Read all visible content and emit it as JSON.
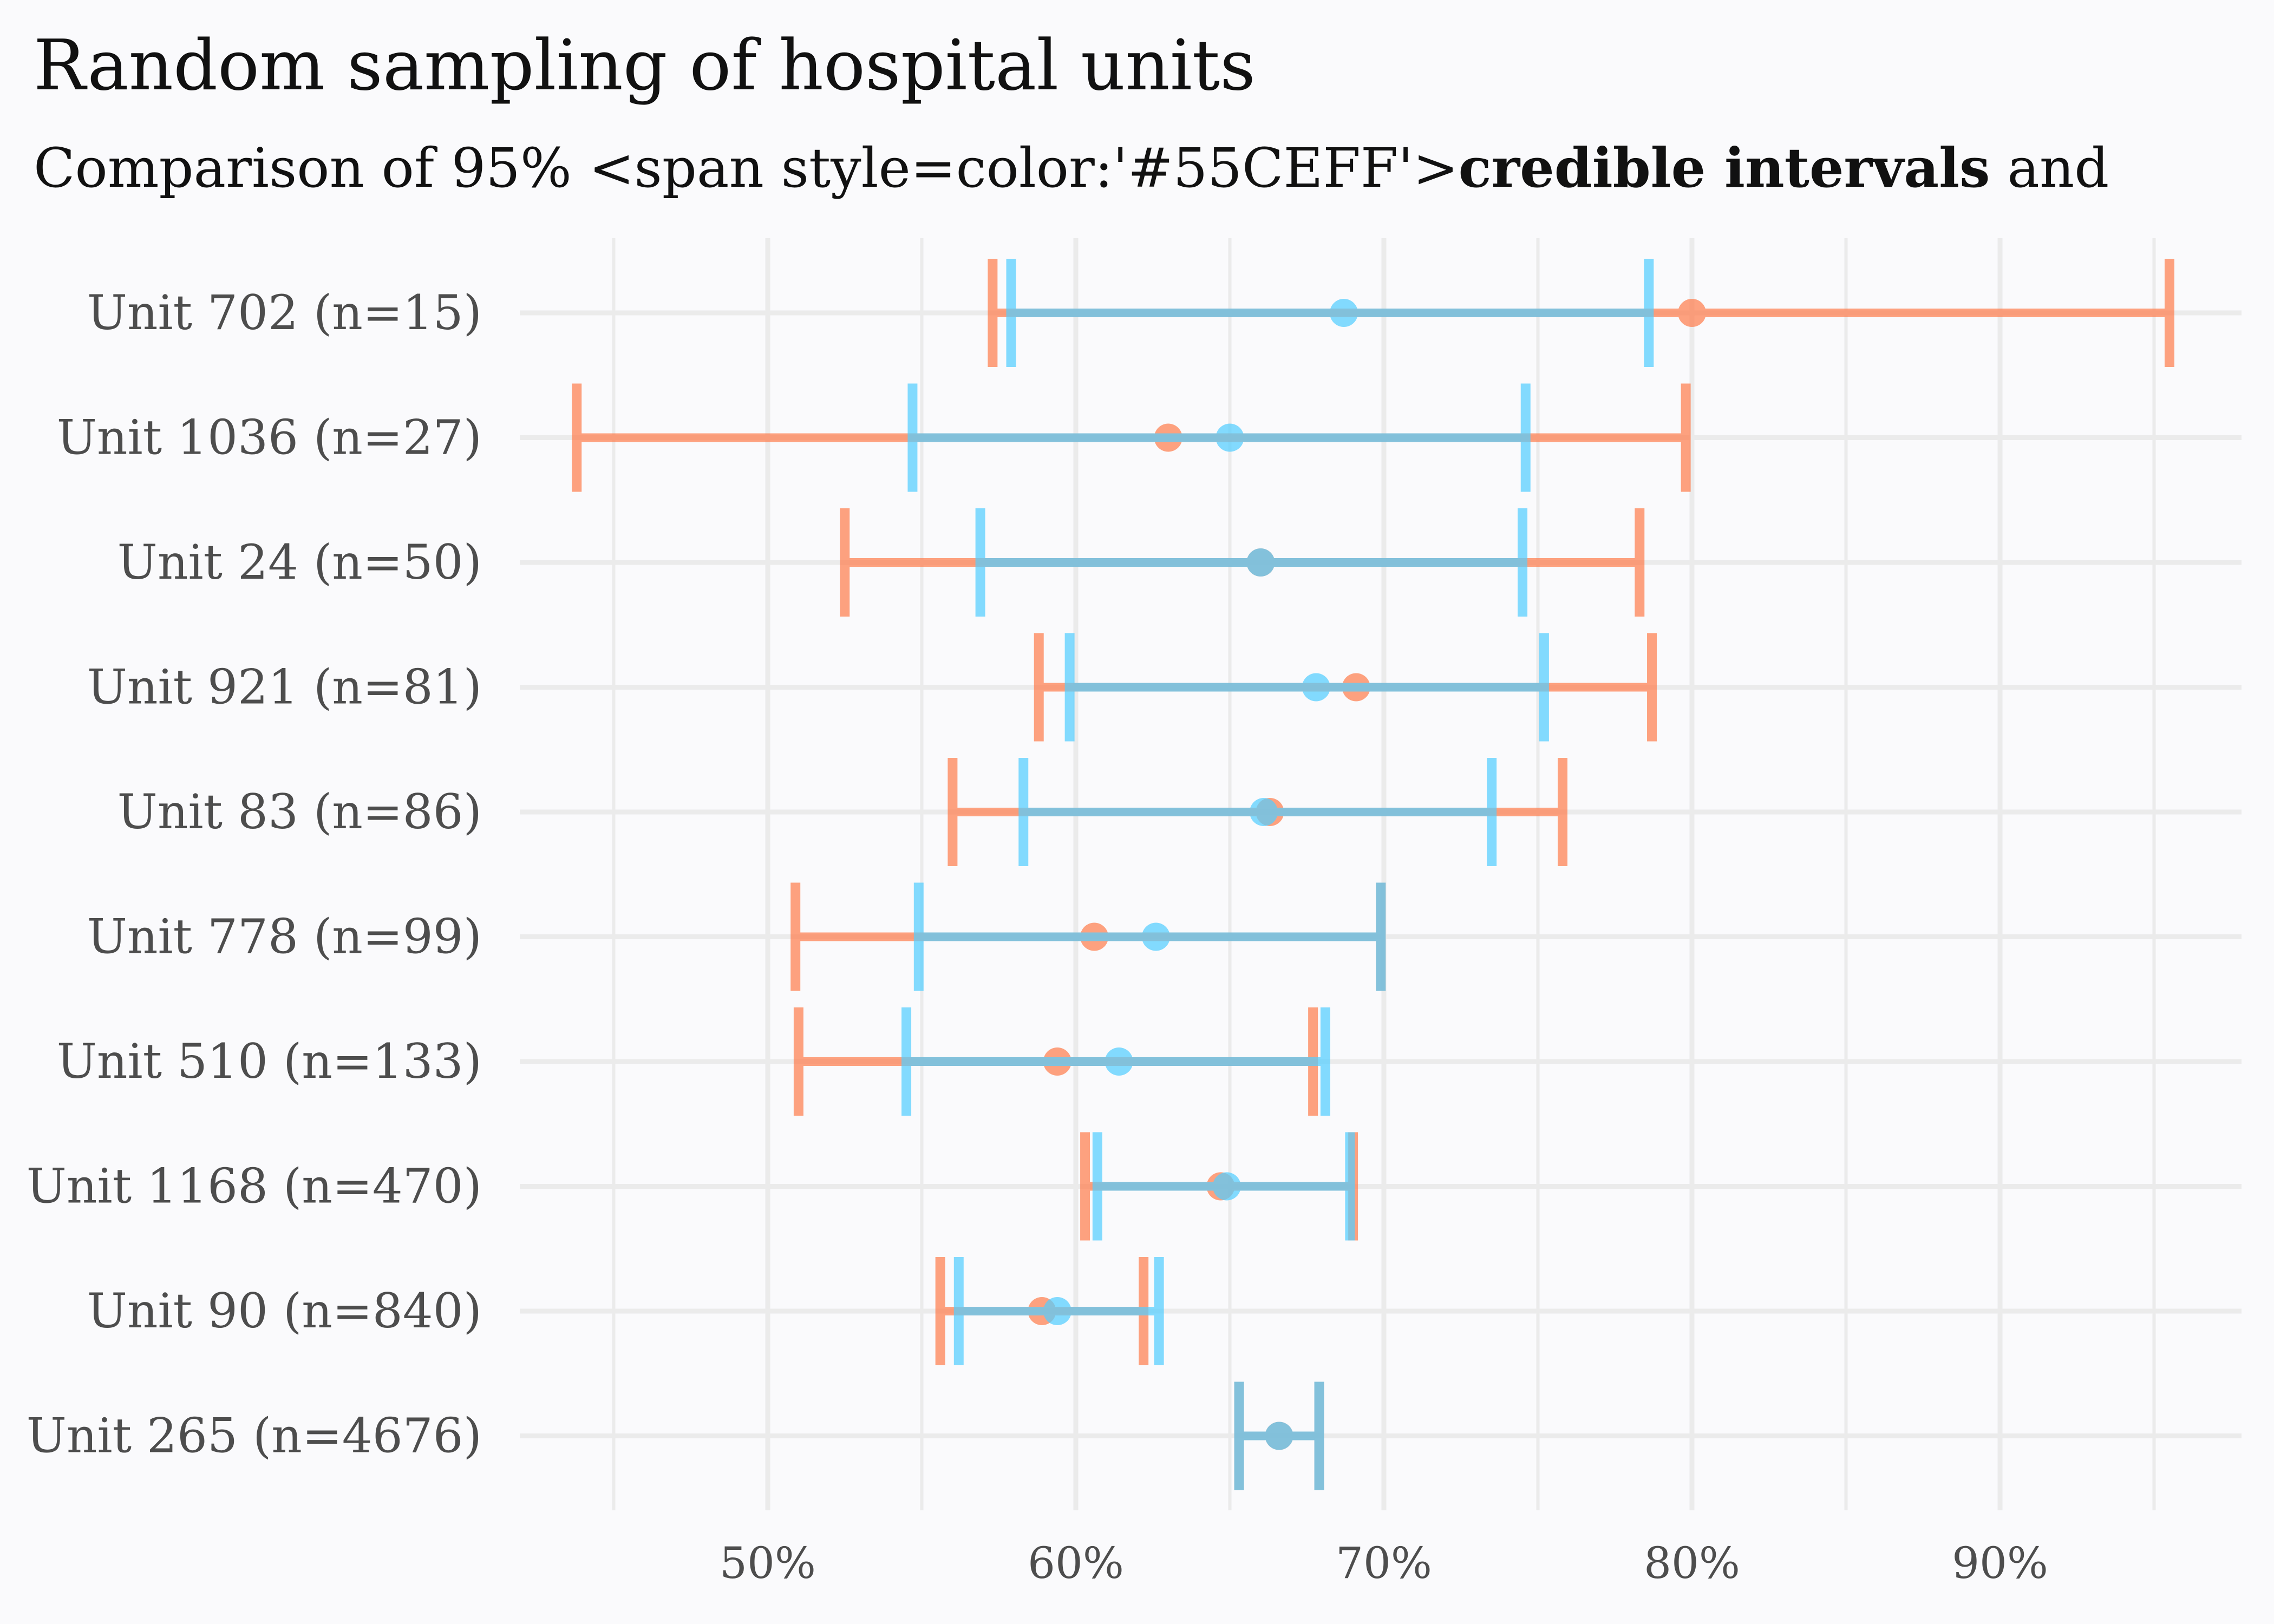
{
  "colors": {
    "background": "#FAFAFC",
    "grid": "#EBEBEB",
    "credible": "#55CEFF",
    "confidence": "#FF7F50"
  },
  "chart_data": {
    "type": "interval",
    "title": "Random sampling of hospital units",
    "subtitle_parts": [
      "Comparison of 95% <span style=color:'#55CEFF'>",
      "credible intervals",
      " and"
    ],
    "xlabel": "",
    "ylabel": "",
    "xlim": [
      0.42,
      0.975
    ],
    "x_ticks": [
      0.5,
      0.6,
      0.7,
      0.8,
      0.9
    ],
    "x_tick_labels": [
      "50%",
      "60%",
      "70%",
      "80%",
      "90%"
    ],
    "grid": true,
    "series": [
      {
        "key": "confidence",
        "units": [
          {
            "label": "Unit 702 (n=15)",
            "low": 0.573,
            "high": 0.955,
            "point": 0.8
          },
          {
            "label": "Unit 1036 (n=27)",
            "low": 0.438,
            "high": 0.798,
            "point": 0.63
          },
          {
            "label": "Unit 24 (n=50)",
            "low": 0.525,
            "high": 0.783,
            "point": 0.66
          },
          {
            "label": "Unit 921 (n=81)",
            "low": 0.588,
            "high": 0.787,
            "point": 0.691
          },
          {
            "label": "Unit 83 (n=86)",
            "low": 0.56,
            "high": 0.758,
            "point": 0.663
          },
          {
            "label": "Unit 778 (n=99)",
            "low": 0.509,
            "high": 0.699,
            "point": 0.606
          },
          {
            "label": "Unit 510 (n=133)",
            "low": 0.51,
            "high": 0.677,
            "point": 0.594
          },
          {
            "label": "Unit 1168 (n=470)",
            "low": 0.603,
            "high": 0.69,
            "point": 0.647
          },
          {
            "label": "Unit 90 (n=840)",
            "low": 0.556,
            "high": 0.622,
            "point": 0.589
          },
          {
            "label": "Unit 265 (n=4676)",
            "low": 0.653,
            "high": 0.679,
            "point": 0.666
          }
        ]
      },
      {
        "key": "credible",
        "units": [
          {
            "label": "Unit 702 (n=15)",
            "low": 0.579,
            "high": 0.786,
            "point": 0.687
          },
          {
            "label": "Unit 1036 (n=27)",
            "low": 0.547,
            "high": 0.746,
            "point": 0.65
          },
          {
            "label": "Unit 24 (n=50)",
            "low": 0.569,
            "high": 0.745,
            "point": 0.66
          },
          {
            "label": "Unit 921 (n=81)",
            "low": 0.598,
            "high": 0.752,
            "point": 0.678
          },
          {
            "label": "Unit 83 (n=86)",
            "low": 0.583,
            "high": 0.735,
            "point": 0.661
          },
          {
            "label": "Unit 778 (n=99)",
            "low": 0.549,
            "high": 0.699,
            "point": 0.626
          },
          {
            "label": "Unit 510 (n=133)",
            "low": 0.545,
            "high": 0.681,
            "point": 0.614
          },
          {
            "label": "Unit 1168 (n=470)",
            "low": 0.607,
            "high": 0.689,
            "point": 0.649
          },
          {
            "label": "Unit 90 (n=840)",
            "low": 0.562,
            "high": 0.627,
            "point": 0.594
          },
          {
            "label": "Unit 265 (n=4676)",
            "low": 0.653,
            "high": 0.679,
            "point": 0.666
          }
        ]
      }
    ]
  }
}
